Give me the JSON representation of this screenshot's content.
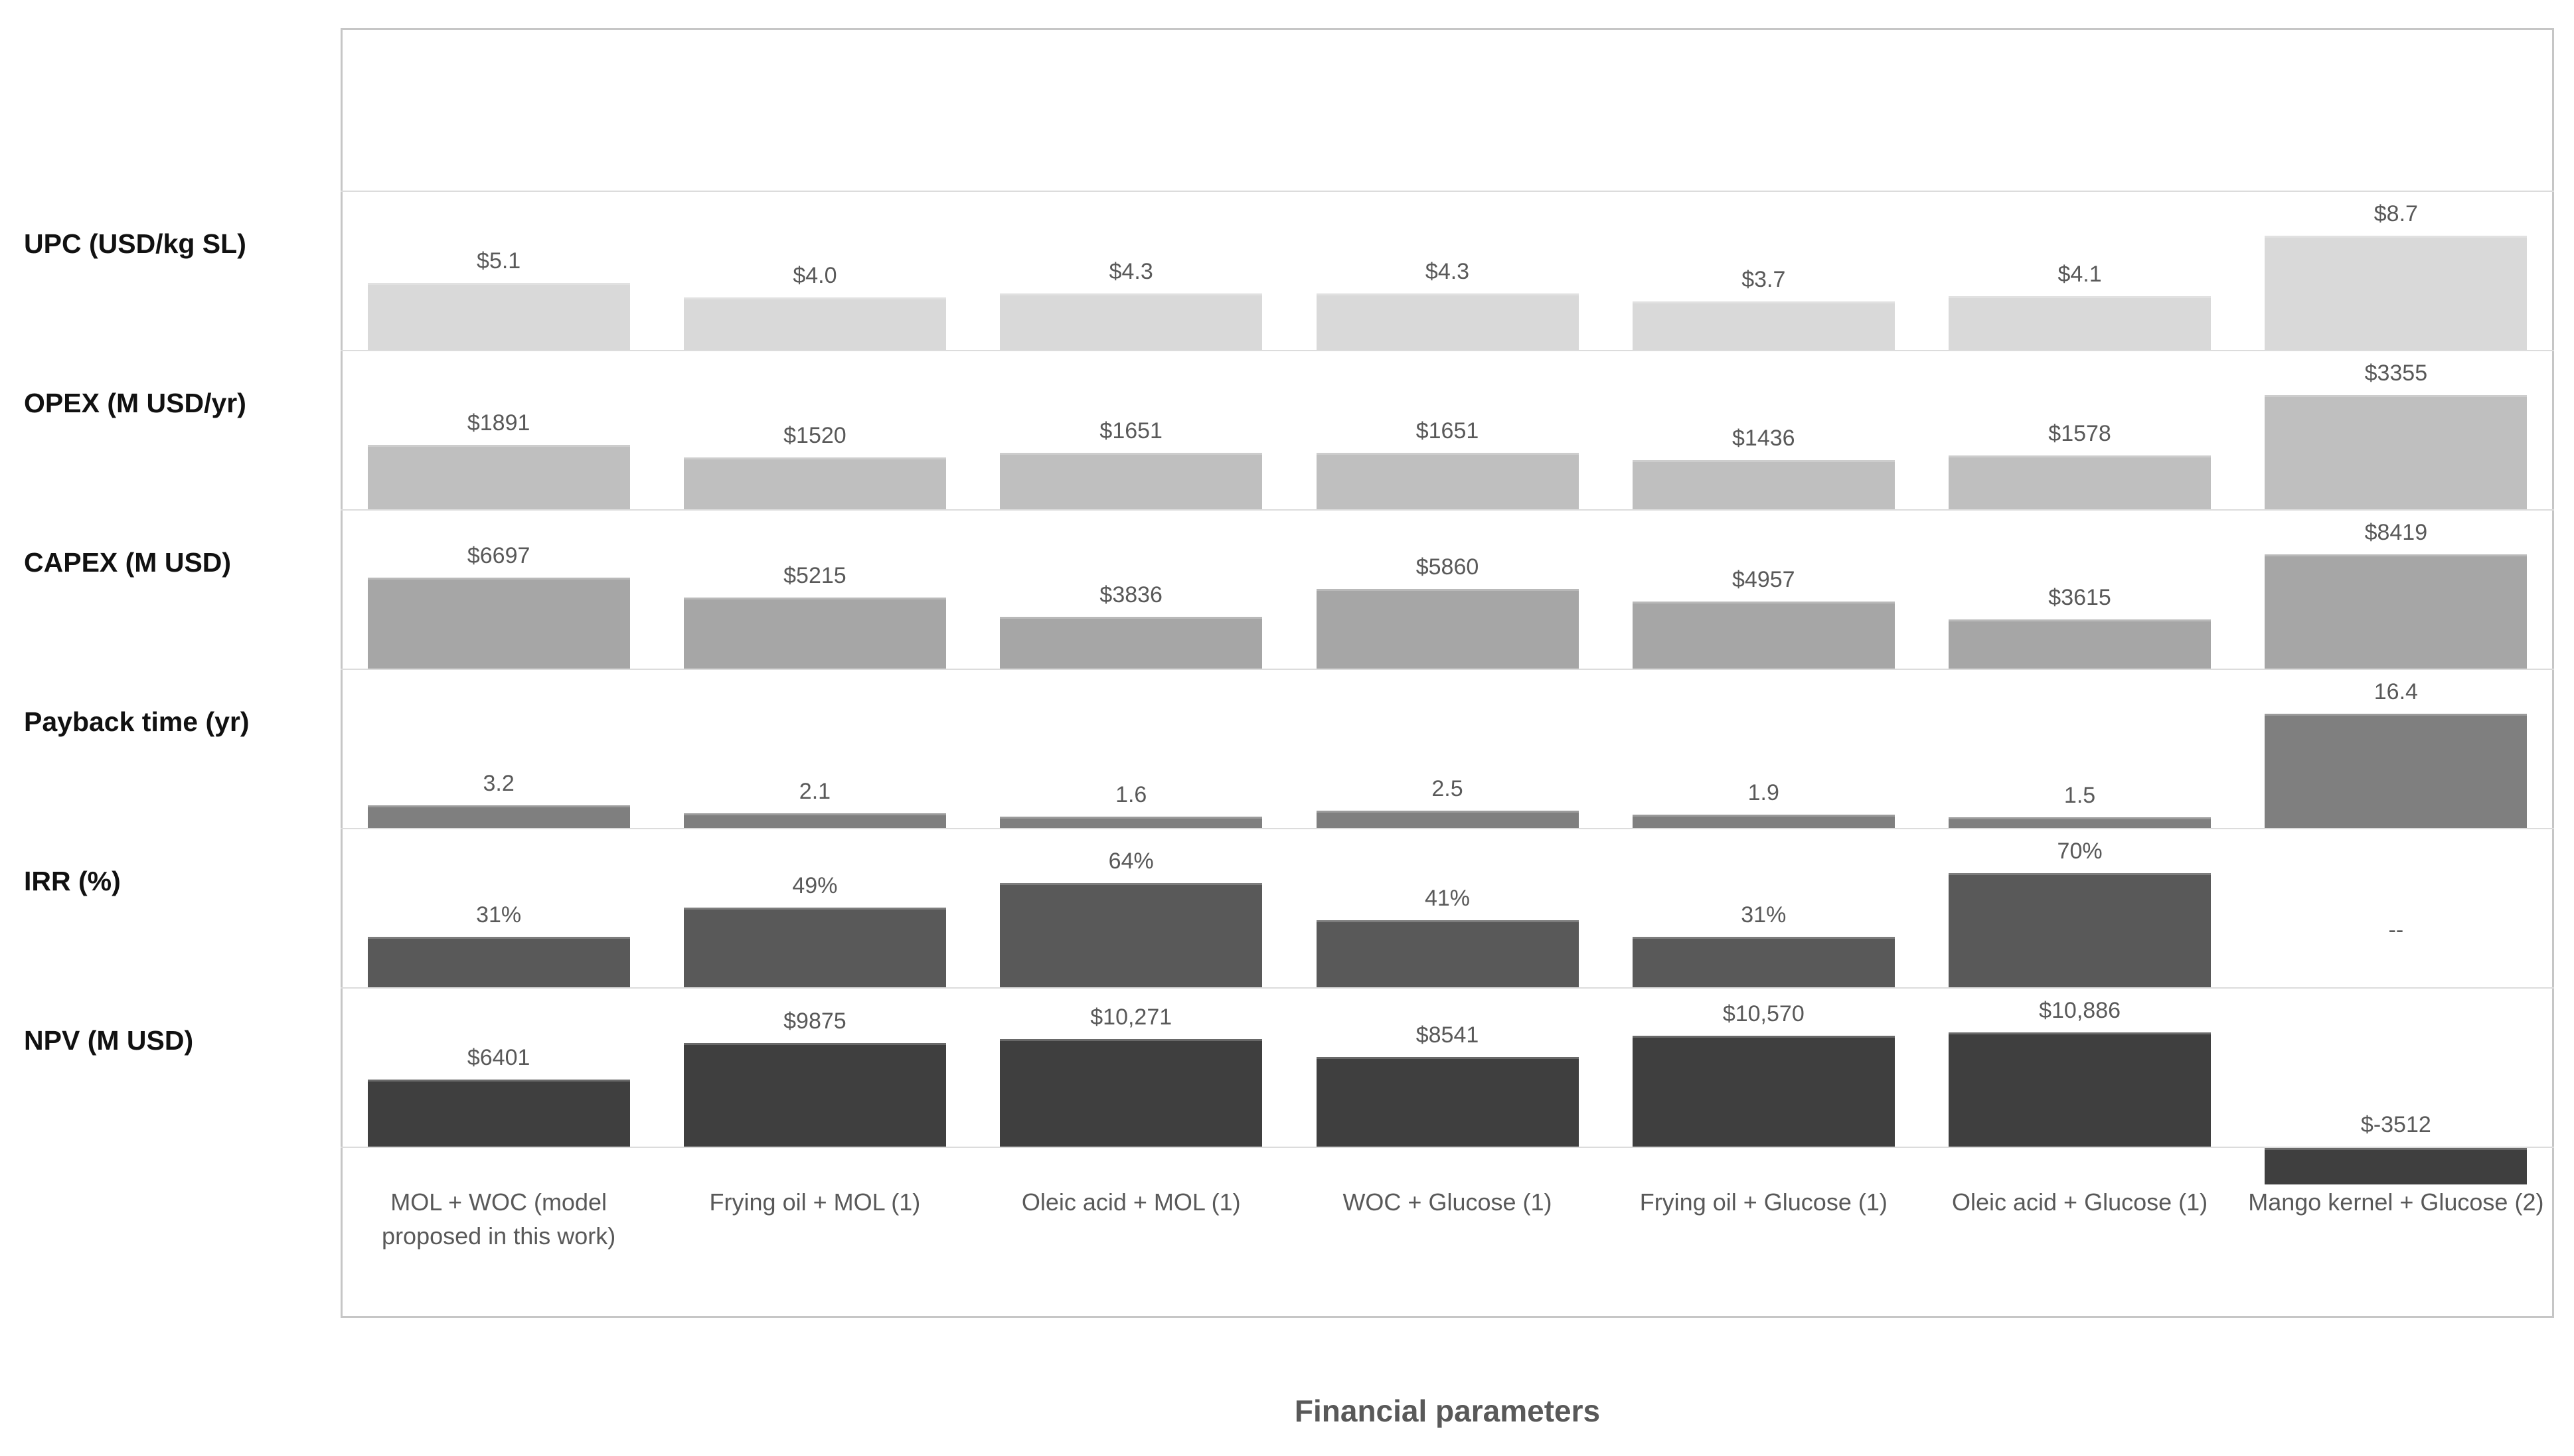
{
  "chart_data": {
    "type": "bar",
    "layout": "horizontal-panel-rows",
    "title": "",
    "xlabel": "Financial parameters",
    "ylabel": "",
    "grid": "row-separator-lines",
    "legend": "none",
    "categories": [
      "MOL + WOC (model proposed in this work)",
      "Frying oil + MOL (1)",
      "Oleic acid + MOL (1)",
      "WOC + Glucose (1)",
      "Frying oil + Glucose (1)",
      "Oleic acid + Glucose (1)",
      "Mango kernel + Glucose (2)"
    ],
    "series": [
      {
        "name": "UPC (USD/kg SL)",
        "color": "#d9d9d9",
        "values": [
          5.1,
          4.0,
          4.3,
          4.3,
          3.7,
          4.1,
          8.7
        ],
        "labels": [
          "$5.1",
          "$4.0",
          "$4.3",
          "$4.3",
          "$3.7",
          "$4.1",
          "$8.7"
        ]
      },
      {
        "name": "OPEX (M USD/yr)",
        "color": "#bfbfbf",
        "values": [
          1891,
          1520,
          1651,
          1651,
          1436,
          1578,
          3355
        ],
        "labels": [
          "$1891",
          "$1520",
          "$1651",
          "$1651",
          "$1436",
          "$1578",
          "$3355"
        ]
      },
      {
        "name": "CAPEX (M USD)",
        "color": "#a6a6a6",
        "values": [
          6697,
          5215,
          3836,
          5860,
          4957,
          3615,
          8419
        ],
        "labels": [
          "$6697",
          "$5215",
          "$3836",
          "$5860",
          "$4957",
          "$3615",
          "$8419"
        ]
      },
      {
        "name": "Payback time (yr)",
        "color": "#7f7f7f",
        "values": [
          3.2,
          2.1,
          1.6,
          2.5,
          1.9,
          1.5,
          16.4
        ],
        "labels": [
          "3.2",
          "2.1",
          "1.6",
          "2.5",
          "1.9",
          "1.5",
          "16.4"
        ]
      },
      {
        "name": "IRR (%)",
        "color": "#595959",
        "values": [
          31,
          49,
          64,
          41,
          31,
          70,
          null
        ],
        "labels": [
          "31%",
          "49%",
          "64%",
          "41%",
          "31%",
          "70%",
          "--"
        ]
      },
      {
        "name": "NPV (M USD)",
        "color": "#3f3f3f",
        "values": [
          6401,
          9875,
          10271,
          8541,
          10570,
          10886,
          -3512
        ],
        "labels": [
          "$6401",
          "$9875",
          "$10,271",
          "$8541",
          "$10,570",
          "$10,886",
          "$-3512"
        ]
      }
    ]
  }
}
